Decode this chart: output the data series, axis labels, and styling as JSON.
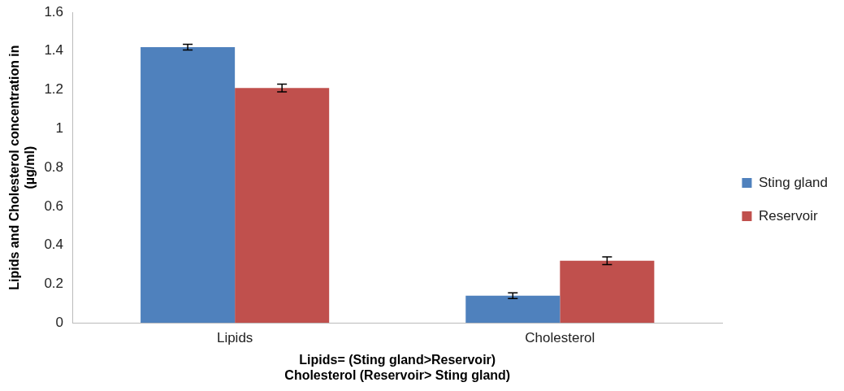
{
  "chart_data": {
    "type": "bar",
    "categories": [
      "Lipids",
      "Cholesterol"
    ],
    "series": [
      {
        "name": "Sting gland",
        "color": "#4f81bd",
        "values": [
          1.42,
          0.14
        ],
        "errors": [
          0.015,
          0.015
        ]
      },
      {
        "name": "Reservoir",
        "color": "#c0504d",
        "values": [
          1.21,
          0.32
        ],
        "errors": [
          0.02,
          0.02
        ]
      }
    ],
    "xlabel": "Lipids= (Sting gland>Reservoir)\nCholesterol (Reservoir> Sting gland)",
    "ylabel": "Lipids and Cholesterol concentration in\n(µg/ml)",
    "ylim": [
      0,
      1.6
    ],
    "yticks": [
      0,
      0.2,
      0.4,
      0.6,
      0.8,
      1,
      1.2,
      1.4,
      1.6
    ],
    "grid": false,
    "legend": "right"
  }
}
